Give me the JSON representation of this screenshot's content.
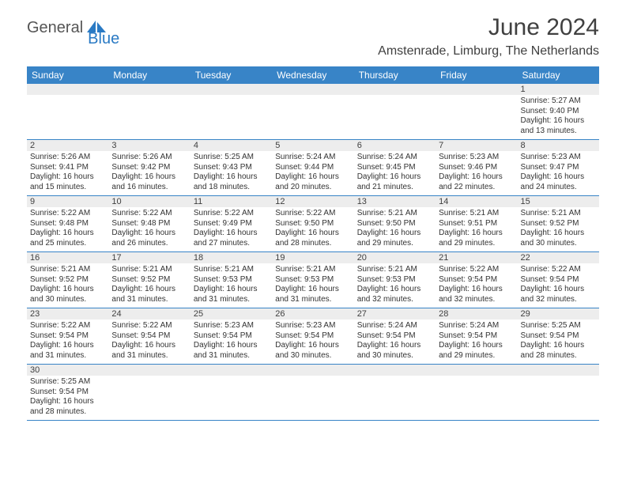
{
  "brand": {
    "part1": "General",
    "part2": "Blue"
  },
  "title": "June 2024",
  "subtitle": "Amstenrade, Limburg, The Netherlands",
  "colors": {
    "header_bg": "#3884c7",
    "header_text": "#ffffff",
    "daynum_bg": "#ededed",
    "border": "#3884c7",
    "text": "#333333",
    "title_text": "#404040",
    "logo_gray": "#555555",
    "logo_blue": "#2a7ac4"
  },
  "fonts": {
    "title": 30,
    "subtitle": 16,
    "dayname": 12,
    "daynum": 11,
    "body": 10
  },
  "daynames": [
    "Sunday",
    "Monday",
    "Tuesday",
    "Wednesday",
    "Thursday",
    "Friday",
    "Saturday"
  ],
  "weeks": [
    [
      {
        "n": "",
        "sr": "",
        "ss": "",
        "dl": ""
      },
      {
        "n": "",
        "sr": "",
        "ss": "",
        "dl": ""
      },
      {
        "n": "",
        "sr": "",
        "ss": "",
        "dl": ""
      },
      {
        "n": "",
        "sr": "",
        "ss": "",
        "dl": ""
      },
      {
        "n": "",
        "sr": "",
        "ss": "",
        "dl": ""
      },
      {
        "n": "",
        "sr": "",
        "ss": "",
        "dl": ""
      },
      {
        "n": "1",
        "sr": "5:27 AM",
        "ss": "9:40 PM",
        "dl": "16 hours and 13 minutes."
      }
    ],
    [
      {
        "n": "2",
        "sr": "5:26 AM",
        "ss": "9:41 PM",
        "dl": "16 hours and 15 minutes."
      },
      {
        "n": "3",
        "sr": "5:26 AM",
        "ss": "9:42 PM",
        "dl": "16 hours and 16 minutes."
      },
      {
        "n": "4",
        "sr": "5:25 AM",
        "ss": "9:43 PM",
        "dl": "16 hours and 18 minutes."
      },
      {
        "n": "5",
        "sr": "5:24 AM",
        "ss": "9:44 PM",
        "dl": "16 hours and 20 minutes."
      },
      {
        "n": "6",
        "sr": "5:24 AM",
        "ss": "9:45 PM",
        "dl": "16 hours and 21 minutes."
      },
      {
        "n": "7",
        "sr": "5:23 AM",
        "ss": "9:46 PM",
        "dl": "16 hours and 22 minutes."
      },
      {
        "n": "8",
        "sr": "5:23 AM",
        "ss": "9:47 PM",
        "dl": "16 hours and 24 minutes."
      }
    ],
    [
      {
        "n": "9",
        "sr": "5:22 AM",
        "ss": "9:48 PM",
        "dl": "16 hours and 25 minutes."
      },
      {
        "n": "10",
        "sr": "5:22 AM",
        "ss": "9:48 PM",
        "dl": "16 hours and 26 minutes."
      },
      {
        "n": "11",
        "sr": "5:22 AM",
        "ss": "9:49 PM",
        "dl": "16 hours and 27 minutes."
      },
      {
        "n": "12",
        "sr": "5:22 AM",
        "ss": "9:50 PM",
        "dl": "16 hours and 28 minutes."
      },
      {
        "n": "13",
        "sr": "5:21 AM",
        "ss": "9:50 PM",
        "dl": "16 hours and 29 minutes."
      },
      {
        "n": "14",
        "sr": "5:21 AM",
        "ss": "9:51 PM",
        "dl": "16 hours and 29 minutes."
      },
      {
        "n": "15",
        "sr": "5:21 AM",
        "ss": "9:52 PM",
        "dl": "16 hours and 30 minutes."
      }
    ],
    [
      {
        "n": "16",
        "sr": "5:21 AM",
        "ss": "9:52 PM",
        "dl": "16 hours and 30 minutes."
      },
      {
        "n": "17",
        "sr": "5:21 AM",
        "ss": "9:52 PM",
        "dl": "16 hours and 31 minutes."
      },
      {
        "n": "18",
        "sr": "5:21 AM",
        "ss": "9:53 PM",
        "dl": "16 hours and 31 minutes."
      },
      {
        "n": "19",
        "sr": "5:21 AM",
        "ss": "9:53 PM",
        "dl": "16 hours and 31 minutes."
      },
      {
        "n": "20",
        "sr": "5:21 AM",
        "ss": "9:53 PM",
        "dl": "16 hours and 32 minutes."
      },
      {
        "n": "21",
        "sr": "5:22 AM",
        "ss": "9:54 PM",
        "dl": "16 hours and 32 minutes."
      },
      {
        "n": "22",
        "sr": "5:22 AM",
        "ss": "9:54 PM",
        "dl": "16 hours and 32 minutes."
      }
    ],
    [
      {
        "n": "23",
        "sr": "5:22 AM",
        "ss": "9:54 PM",
        "dl": "16 hours and 31 minutes."
      },
      {
        "n": "24",
        "sr": "5:22 AM",
        "ss": "9:54 PM",
        "dl": "16 hours and 31 minutes."
      },
      {
        "n": "25",
        "sr": "5:23 AM",
        "ss": "9:54 PM",
        "dl": "16 hours and 31 minutes."
      },
      {
        "n": "26",
        "sr": "5:23 AM",
        "ss": "9:54 PM",
        "dl": "16 hours and 30 minutes."
      },
      {
        "n": "27",
        "sr": "5:24 AM",
        "ss": "9:54 PM",
        "dl": "16 hours and 30 minutes."
      },
      {
        "n": "28",
        "sr": "5:24 AM",
        "ss": "9:54 PM",
        "dl": "16 hours and 29 minutes."
      },
      {
        "n": "29",
        "sr": "5:25 AM",
        "ss": "9:54 PM",
        "dl": "16 hours and 28 minutes."
      }
    ],
    [
      {
        "n": "30",
        "sr": "5:25 AM",
        "ss": "9:54 PM",
        "dl": "16 hours and 28 minutes."
      },
      {
        "n": "",
        "sr": "",
        "ss": "",
        "dl": ""
      },
      {
        "n": "",
        "sr": "",
        "ss": "",
        "dl": ""
      },
      {
        "n": "",
        "sr": "",
        "ss": "",
        "dl": ""
      },
      {
        "n": "",
        "sr": "",
        "ss": "",
        "dl": ""
      },
      {
        "n": "",
        "sr": "",
        "ss": "",
        "dl": ""
      },
      {
        "n": "",
        "sr": "",
        "ss": "",
        "dl": ""
      }
    ]
  ],
  "labels": {
    "sunrise": "Sunrise: ",
    "sunset": "Sunset: ",
    "daylight": "Daylight: "
  }
}
